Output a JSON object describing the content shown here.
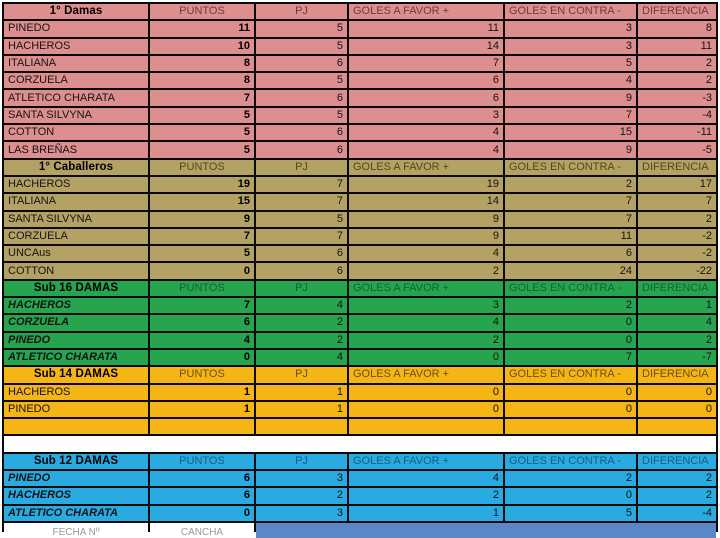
{
  "columns": {
    "puntos": "PUNTOS",
    "pj": "PJ",
    "gf": "GOLES A FAVOR +",
    "gc": "GOLES EN CONTRA -",
    "dif": "DIFERENCIA"
  },
  "sections": [
    {
      "title": "1° Damas",
      "bg": "#DD8E8E",
      "header_text": "#6E3B3B",
      "italic_teams": false,
      "empty_rows": 0,
      "gap_after": false,
      "rows": [
        [
          "PINEDO",
          "11",
          "5",
          "11",
          "3",
          "8"
        ],
        [
          "HACHEROS",
          "10",
          "5",
          "14",
          "3",
          "11"
        ],
        [
          "ITALIANA",
          "8",
          "6",
          "7",
          "5",
          "2"
        ],
        [
          "CORZUELA",
          "8",
          "5",
          "6",
          "4",
          "2"
        ],
        [
          "ATLETICO CHARATA",
          "7",
          "6",
          "6",
          "9",
          "-3"
        ],
        [
          "SANTA SILVYNA",
          "5",
          "5",
          "3",
          "7",
          "-4"
        ],
        [
          "COTTON",
          "5",
          "6",
          "4",
          "15",
          "-11"
        ],
        [
          "LAS BREÑAS",
          "5",
          "6",
          "4",
          "9",
          "-5"
        ]
      ]
    },
    {
      "title": "1° Caballeros",
      "bg": "#B3A264",
      "header_text": "#564718",
      "italic_teams": false,
      "empty_rows": 0,
      "gap_after": false,
      "rows": [
        [
          "HACHEROS",
          "19",
          "7",
          "19",
          "2",
          "17"
        ],
        [
          "ITALIANA",
          "15",
          "7",
          "14",
          "7",
          "7"
        ],
        [
          "SANTA SILVYNA",
          "9",
          "5",
          "9",
          "7",
          "2"
        ],
        [
          "CORZUELA",
          "7",
          "7",
          "9",
          "11",
          "-2"
        ],
        [
          "UNCAus",
          "5",
          "6",
          "4",
          "6",
          "-2"
        ],
        [
          "COTTON",
          "0",
          "6",
          "2",
          "24",
          "-22"
        ]
      ]
    },
    {
      "title": "Sub 16 DAMAS",
      "bg": "#27A44E",
      "header_text": "#176233",
      "italic_teams": true,
      "empty_rows": 0,
      "gap_after": false,
      "rows": [
        [
          "HACHEROS",
          "7",
          "4",
          "3",
          "2",
          "1"
        ],
        [
          "CORZUELA",
          "6",
          "2",
          "4",
          "0",
          "4"
        ],
        [
          "PINEDO",
          "4",
          "2",
          "2",
          "0",
          "2"
        ],
        [
          "ATLETICO CHARATA",
          "0",
          "4",
          "0",
          "7",
          "-7"
        ]
      ]
    },
    {
      "title": "Sub 14 DAMAS",
      "bg": "#F5B515",
      "header_text": "#6B5110",
      "italic_teams": false,
      "empty_rows": 1,
      "gap_after": true,
      "rows": [
        [
          "HACHEROS",
          "1",
          "1",
          "0",
          "0",
          "0"
        ],
        [
          "PINEDO",
          "1",
          "1",
          "0",
          "0",
          "0"
        ]
      ]
    },
    {
      "title": "Sub 12 DAMAS",
      "bg": "#29ABE2",
      "header_text": "#135E86",
      "italic_teams": true,
      "empty_rows": 0,
      "gap_after": false,
      "rows": [
        [
          "PINEDO",
          "6",
          "3",
          "4",
          "2",
          "2"
        ],
        [
          "HACHEROS",
          "6",
          "2",
          "2",
          "0",
          "2"
        ],
        [
          "ATLETICO CHARATA",
          "0",
          "3",
          "1",
          "5",
          "-4"
        ]
      ]
    }
  ],
  "footer": {
    "cell1": "FECHA Nº",
    "cell2": "CANCHA",
    "band_color": "#5B86C8"
  }
}
